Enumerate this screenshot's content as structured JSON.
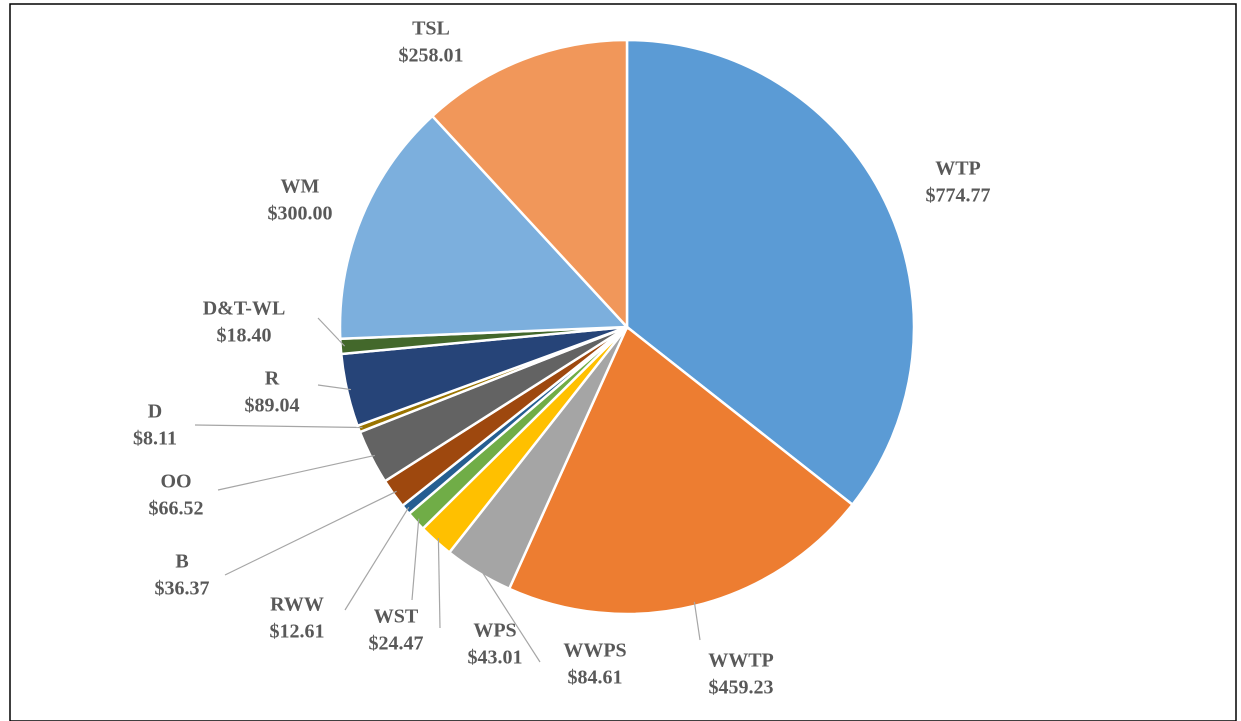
{
  "chart_data": {
    "type": "pie",
    "categories": [
      "WTP",
      "WWTP",
      "WWPS",
      "WPS",
      "WST",
      "RWW",
      "B",
      "OO",
      "D",
      "R",
      "D&T-WL",
      "WM",
      "TSL"
    ],
    "values": [
      774.77,
      459.23,
      84.61,
      43.01,
      24.47,
      12.61,
      36.37,
      66.52,
      8.11,
      89.04,
      18.4,
      300.0,
      258.01
    ],
    "value_labels": [
      "$774.77",
      "$459.23",
      "$84.61",
      "$43.01",
      "$24.47",
      "$12.61",
      "$36.37",
      "$66.52",
      "$8.11",
      "$89.04",
      "$18.40",
      "$300.00",
      "$258.01"
    ],
    "colors": [
      "#5b9bd5",
      "#ed7d31",
      "#a5a5a5",
      "#ffc000",
      "#70ad47",
      "#255e91",
      "#9e480e",
      "#636363",
      "#997300",
      "#264478",
      "#43682b",
      "#7cafdd",
      "#f1975a"
    ]
  }
}
